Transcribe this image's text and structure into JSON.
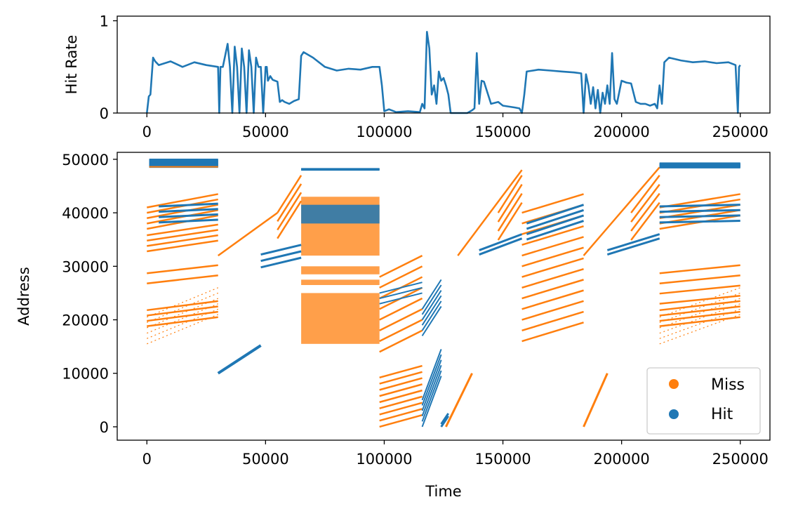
{
  "colors": {
    "hit": "#1f77b4",
    "miss": "#ff7f0e",
    "axis": "#000000",
    "legend_border": "#cccccc"
  },
  "chart_data": [
    {
      "type": "line",
      "ylabel": "Hit Rate",
      "xlabel": "",
      "xlim": [
        -12500,
        262500
      ],
      "ylim": [
        0,
        1.05
      ],
      "xticks": [
        0,
        50000,
        100000,
        150000,
        200000,
        250000
      ],
      "xtick_labels": [
        "0",
        "50000",
        "100000",
        "150000",
        "200000",
        "250000"
      ],
      "yticks": [
        0,
        1
      ],
      "ytick_labels": [
        "0",
        "1"
      ],
      "series": [
        {
          "name": "Hit Rate",
          "x": [
            0,
            800,
            1500,
            2600,
            3500,
            5000,
            10000,
            15000,
            20000,
            25000,
            30000,
            30500,
            31000,
            32000,
            34000,
            35000,
            36000,
            37000,
            38000,
            39000,
            40000,
            41000,
            42000,
            43000,
            44000,
            45000,
            46000,
            47000,
            48000,
            49000,
            50000,
            50500,
            51000,
            52000,
            53000,
            54000,
            55000,
            56000,
            57000,
            58000,
            60000,
            62000,
            64000,
            65000,
            66000,
            70000,
            75000,
            80000,
            85000,
            90000,
            95000,
            98000,
            99000,
            100000,
            102000,
            105000,
            110000,
            115000,
            116000,
            117000,
            118000,
            119000,
            120000,
            121000,
            122000,
            123000,
            124000,
            125000,
            126000,
            127000,
            128000,
            130000,
            135000,
            137000,
            138000,
            139000,
            140000,
            141000,
            142000,
            145000,
            148000,
            150000,
            155000,
            157000,
            158000,
            159000,
            160000,
            165000,
            170000,
            175000,
            180000,
            183000,
            184000,
            185000,
            186000,
            187000,
            188000,
            189000,
            190000,
            191000,
            192000,
            193000,
            194000,
            195000,
            196000,
            197000,
            198000,
            200000,
            202000,
            204000,
            206000,
            208000,
            210000,
            212000,
            214000,
            215000,
            216000,
            217000,
            218000,
            220000,
            225000,
            230000,
            235000,
            240000,
            245000,
            248000,
            249000,
            249500,
            250000
          ],
          "values": [
            0.0,
            0.18,
            0.2,
            0.6,
            0.56,
            0.52,
            0.56,
            0.5,
            0.55,
            0.52,
            0.5,
            0.0,
            0.5,
            0.5,
            0.75,
            0.5,
            0.0,
            0.72,
            0.5,
            0.0,
            0.7,
            0.5,
            0.0,
            0.68,
            0.5,
            0.0,
            0.6,
            0.5,
            0.5,
            0.0,
            0.5,
            0.5,
            0.35,
            0.4,
            0.36,
            0.35,
            0.34,
            0.12,
            0.14,
            0.12,
            0.1,
            0.13,
            0.15,
            0.62,
            0.66,
            0.6,
            0.5,
            0.46,
            0.48,
            0.47,
            0.5,
            0.5,
            0.3,
            0.02,
            0.04,
            0.01,
            0.02,
            0.01,
            0.1,
            0.05,
            0.88,
            0.7,
            0.2,
            0.3,
            0.1,
            0.45,
            0.35,
            0.38,
            0.3,
            0.2,
            0.0,
            0.0,
            0.0,
            0.03,
            0.05,
            0.65,
            0.1,
            0.35,
            0.34,
            0.1,
            0.12,
            0.08,
            0.06,
            0.05,
            0.0,
            0.2,
            0.45,
            0.47,
            0.46,
            0.45,
            0.44,
            0.43,
            0.0,
            0.42,
            0.3,
            0.1,
            0.28,
            0.05,
            0.25,
            0.0,
            0.22,
            0.1,
            0.3,
            0.1,
            0.65,
            0.15,
            0.1,
            0.35,
            0.33,
            0.32,
            0.12,
            0.1,
            0.1,
            0.08,
            0.1,
            0.05,
            0.3,
            0.1,
            0.55,
            0.6,
            0.57,
            0.55,
            0.56,
            0.54,
            0.55,
            0.52,
            0.0,
            0.5,
            0.52
          ]
        }
      ]
    },
    {
      "type": "scatter",
      "xlabel": "Time",
      "ylabel": "Address",
      "xlim": [
        -12500,
        262500
      ],
      "ylim": [
        -2500,
        51300
      ],
      "xticks": [
        0,
        50000,
        100000,
        150000,
        200000,
        250000
      ],
      "xtick_labels": [
        "0",
        "50000",
        "100000",
        "150000",
        "200000",
        "250000"
      ],
      "yticks": [
        0,
        10000,
        20000,
        30000,
        40000,
        50000
      ],
      "ytick_labels": [
        "0",
        "10000",
        "20000",
        "30000",
        "40000",
        "50000"
      ],
      "legend": {
        "location": "lower-right",
        "entries": [
          {
            "name": "Miss",
            "color": "#ff7f0e"
          },
          {
            "name": "Hit",
            "color": "#1f77b4"
          }
        ]
      },
      "streaks": [
        {
          "series": "Hit",
          "x0": 1000,
          "x1": 30000,
          "y0": 48600,
          "y1": 48600,
          "count": 12,
          "dy": 120,
          "w": 3
        },
        {
          "series": "Miss",
          "x0": 1000,
          "x1": 30000,
          "y0": 48600,
          "y1": 48600,
          "count": 1,
          "dy": 0,
          "w": 2
        },
        {
          "series": "Miss",
          "x0": 0,
          "x1": 30000,
          "y0": 41000,
          "y1": 43500,
          "count": 5,
          "dy": -1000,
          "w": 2.5
        },
        {
          "series": "Hit",
          "x0": 5000,
          "x1": 30000,
          "y0": 41200,
          "y1": 41700,
          "count": 4,
          "dy": -1000,
          "w": 3
        },
        {
          "series": "Miss",
          "x0": 0,
          "x1": 30000,
          "y0": 35800,
          "y1": 37800,
          "count": 4,
          "dy": -1000,
          "w": 2.5
        },
        {
          "series": "Miss",
          "x0": 0,
          "x1": 30000,
          "y0": 28700,
          "y1": 30200,
          "count": 2,
          "dy": -1900,
          "w": 2.5
        },
        {
          "series": "Miss",
          "x0": 0,
          "x1": 30000,
          "y0": 21800,
          "y1": 23500,
          "count": 4,
          "dy": -1000,
          "w": 2.5
        },
        {
          "series": "Miss",
          "x0": 0,
          "x1": 30000,
          "y0": 15500,
          "y1": 21000,
          "count": 6,
          "dy": 1000,
          "w": 1.2,
          "dotted": true
        },
        {
          "series": "Hit",
          "x0": 30000,
          "x1": 48000,
          "y0": 10000,
          "y1": 15200,
          "count": 1,
          "dy": 0,
          "w": 4
        },
        {
          "series": "Miss",
          "x0": 30000,
          "x1": 55000,
          "y0": 32000,
          "y1": 40000,
          "count": 1,
          "dy": 0,
          "w": 2.5
        },
        {
          "series": "Miss",
          "x0": 55000,
          "x1": 65000,
          "y0": 40000,
          "y1": 47000,
          "count": 4,
          "dy": -1600,
          "w": 2.5
        },
        {
          "series": "Hit",
          "x0": 48000,
          "x1": 65000,
          "y0": 32200,
          "y1": 34000,
          "count": 3,
          "dy": -1200,
          "w": 3
        },
        {
          "series": "Hit",
          "x0": 65000,
          "x1": 98000,
          "y0": 48200,
          "y1": 48200,
          "count": 3,
          "dy": -80,
          "w": 2.5
        },
        {
          "series": "Miss",
          "x0": 98000,
          "x1": 116000,
          "y0": 28000,
          "y1": 32000,
          "count": 8,
          "dy": -2000,
          "w": 2.5
        },
        {
          "series": "Hit",
          "x0": 98000,
          "x1": 116000,
          "y0": 25000,
          "y1": 27000,
          "count": 3,
          "dy": -1000,
          "w": 2
        },
        {
          "series": "Miss",
          "x0": 98000,
          "x1": 116000,
          "y0": 0,
          "y1": 2200,
          "count": 9,
          "dy": 1150,
          "w": 2.5
        },
        {
          "series": "Hit",
          "x0": 116000,
          "x1": 124000,
          "y0": 22000,
          "y1": 27500,
          "count": 6,
          "dy": -1000,
          "w": 2
        },
        {
          "series": "Hit",
          "x0": 116000,
          "x1": 124000,
          "y0": 0,
          "y1": 9500,
          "count": 6,
          "dy": 1000,
          "w": 2
        },
        {
          "series": "Hit",
          "x0": 124000,
          "x1": 127000,
          "y0": 0,
          "y1": 2000,
          "count": 2,
          "dy": 500,
          "w": 3
        },
        {
          "series": "Miss",
          "x0": 126000,
          "x1": 137000,
          "y0": 0,
          "y1": 10000,
          "count": 1,
          "dy": 0,
          "w": 3
        },
        {
          "series": "Miss",
          "x0": 131000,
          "x1": 158000,
          "y0": 32000,
          "y1": 48000,
          "count": 1,
          "dy": 0,
          "w": 2.5
        },
        {
          "series": "Miss",
          "x0": 148000,
          "x1": 158000,
          "y0": 40000,
          "y1": 47000,
          "count": 4,
          "dy": -1700,
          "w": 2.5
        },
        {
          "series": "Hit",
          "x0": 140000,
          "x1": 158000,
          "y0": 33000,
          "y1": 36000,
          "count": 2,
          "dy": -800,
          "w": 3
        },
        {
          "series": "Miss",
          "x0": 158000,
          "x1": 184000,
          "y0": 40000,
          "y1": 43500,
          "count": 13,
          "dy": -2000,
          "w": 2.5
        },
        {
          "series": "Hit",
          "x0": 160000,
          "x1": 184000,
          "y0": 38000,
          "y1": 41500,
          "count": 4,
          "dy": -1000,
          "w": 3
        },
        {
          "series": "Miss",
          "x0": 184000,
          "x1": 194000,
          "y0": 0,
          "y1": 10000,
          "count": 1,
          "dy": 0,
          "w": 3
        },
        {
          "series": "Miss",
          "x0": 184000,
          "x1": 216000,
          "y0": 32000,
          "y1": 48500,
          "count": 1,
          "dy": 0,
          "w": 2.5
        },
        {
          "series": "Miss",
          "x0": 204000,
          "x1": 216000,
          "y0": 40000,
          "y1": 47000,
          "count": 4,
          "dy": -1700,
          "w": 2.5
        },
        {
          "series": "Hit",
          "x0": 194000,
          "x1": 216000,
          "y0": 33000,
          "y1": 36000,
          "count": 2,
          "dy": -800,
          "w": 3
        },
        {
          "series": "Hit",
          "x0": 216000,
          "x1": 250000,
          "y0": 48500,
          "y1": 48500,
          "count": 10,
          "dy": 80,
          "w": 3
        },
        {
          "series": "Miss",
          "x0": 216000,
          "x1": 250000,
          "y0": 41000,
          "y1": 43500,
          "count": 5,
          "dy": -1000,
          "w": 2.5
        },
        {
          "series": "Hit",
          "x0": 216000,
          "x1": 250000,
          "y0": 41200,
          "y1": 41500,
          "count": 4,
          "dy": -1000,
          "w": 3
        },
        {
          "series": "Miss",
          "x0": 216000,
          "x1": 250000,
          "y0": 28700,
          "y1": 30200,
          "count": 4,
          "dy": -1900,
          "w": 2.5
        },
        {
          "series": "Miss",
          "x0": 216000,
          "x1": 250000,
          "y0": 21800,
          "y1": 23500,
          "count": 4,
          "dy": -1000,
          "w": 2.5
        },
        {
          "series": "Miss",
          "x0": 216000,
          "x1": 250000,
          "y0": 15500,
          "y1": 21000,
          "count": 6,
          "dy": 1000,
          "w": 1.2,
          "dotted": true
        }
      ],
      "blocks": [
        {
          "series": "Miss",
          "x0": 65000,
          "x1": 98000,
          "y0": 15500,
          "y1": 25000
        },
        {
          "series": "Miss",
          "x0": 65000,
          "x1": 98000,
          "y0": 26500,
          "y1": 27500
        },
        {
          "series": "Miss",
          "x0": 65000,
          "x1": 98000,
          "y0": 28500,
          "y1": 30000
        },
        {
          "series": "Miss",
          "x0": 65000,
          "x1": 98000,
          "y0": 32000,
          "y1": 43000
        },
        {
          "series": "Hit",
          "x0": 65000,
          "x1": 98000,
          "y0": 38000,
          "y1": 41500
        }
      ]
    }
  ]
}
